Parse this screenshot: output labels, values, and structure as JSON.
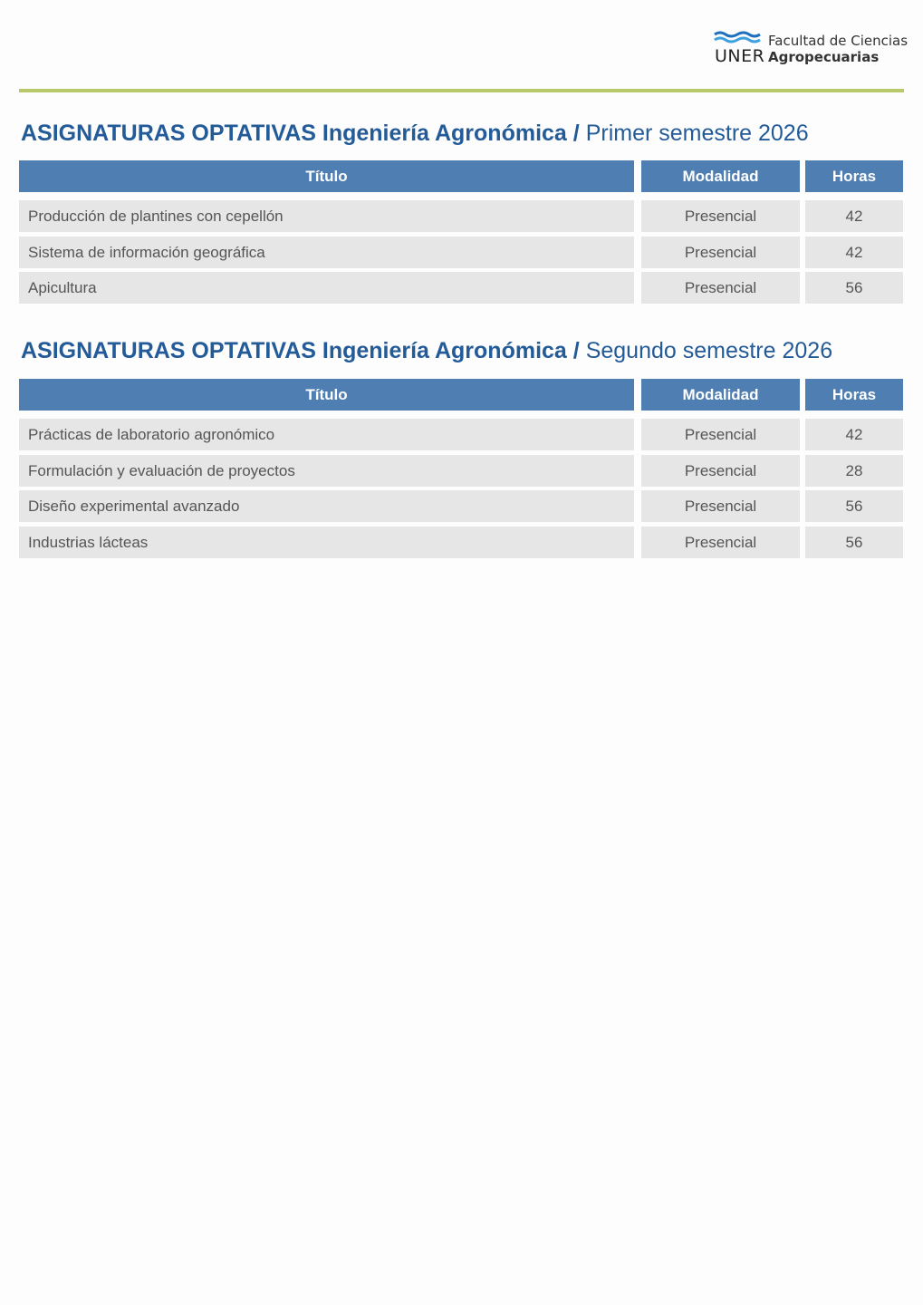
{
  "header": {
    "logo": {
      "wordmark": "UNER",
      "line1": "Facultad de Ciencias",
      "line2": "Agropecuarias"
    },
    "colors": {
      "accent_rule": "#b8c96c",
      "title": "#235a98",
      "table_header": "#4f7eb3",
      "row_bg": "#e6e6e6"
    }
  },
  "columns": [
    "Título",
    "Modalidad",
    "Horas"
  ],
  "sections": [
    {
      "title_bold": "ASIGNATURAS OPTATIVAS Ingeniería Agronómica /",
      "title_regular": "Primer semestre 2026",
      "rows": [
        [
          "Producción de plantines con cepellón",
          "Presencial",
          "42"
        ],
        [
          "Sistema de información geográfica",
          "Presencial",
          "42"
        ],
        [
          "Apicultura",
          "Presencial",
          "56"
        ]
      ]
    },
    {
      "title_bold": "ASIGNATURAS OPTATIVAS Ingeniería Agronómica /",
      "title_regular": "Segundo semestre 2026",
      "rows": [
        [
          "Prácticas de laboratorio agronómico",
          "Presencial",
          "42"
        ],
        [
          "Formulación y evaluación de proyectos",
          "Presencial",
          "28"
        ],
        [
          "Diseño experimental avanzado",
          "Presencial",
          "56"
        ],
        [
          "Industrias lácteas",
          "Presencial",
          "56"
        ]
      ]
    }
  ]
}
